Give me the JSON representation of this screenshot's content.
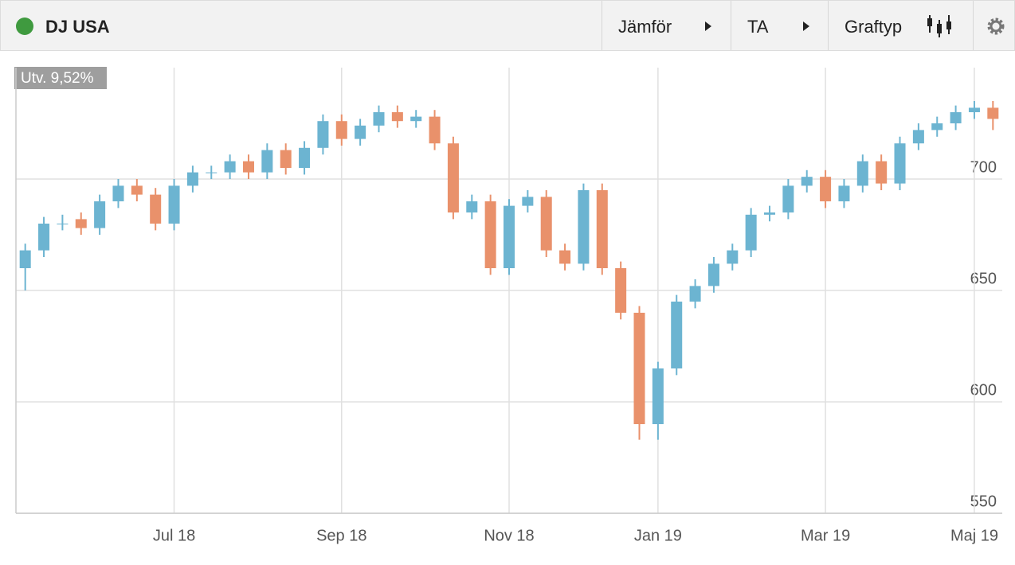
{
  "header": {
    "title": "DJ USA",
    "buttons": [
      "Jämför",
      "TA",
      "Graftyp"
    ]
  },
  "badge": "Utv. 9,52%",
  "chart_data": {
    "type": "candlestick",
    "categories": [
      null,
      null,
      null,
      null,
      null,
      null,
      null,
      null,
      "Jul 18",
      null,
      null,
      null,
      null,
      null,
      null,
      null,
      null,
      "Sep 18",
      null,
      null,
      null,
      null,
      null,
      null,
      null,
      null,
      "Nov 18",
      null,
      null,
      null,
      null,
      null,
      null,
      null,
      "Jan 19",
      null,
      null,
      null,
      null,
      null,
      null,
      null,
      null,
      "Mar 19",
      null,
      null,
      null,
      null,
      null,
      null,
      null,
      "Maj 19",
      null
    ],
    "open": [
      660,
      668,
      680,
      682,
      678,
      690,
      697,
      693,
      680,
      697,
      703,
      703,
      708,
      703,
      713,
      705,
      714,
      726,
      718,
      724,
      730,
      726,
      728,
      716,
      685,
      690,
      660,
      688,
      692,
      668,
      662,
      695,
      660,
      640,
      590,
      615,
      645,
      652,
      662,
      668,
      684,
      685,
      697,
      701,
      690,
      697,
      708,
      698,
      716,
      722,
      725,
      730,
      732
    ],
    "high": [
      671,
      683,
      684,
      685,
      693,
      700,
      700,
      696,
      700,
      706,
      706,
      711,
      711,
      716,
      716,
      717,
      729,
      729,
      727,
      733,
      733,
      731,
      731,
      719,
      693,
      693,
      691,
      695,
      695,
      671,
      698,
      698,
      663,
      643,
      618,
      648,
      655,
      665,
      671,
      687,
      688,
      700,
      704,
      704,
      700,
      711,
      711,
      719,
      725,
      728,
      733,
      735,
      735
    ],
    "low": [
      650,
      665,
      677,
      675,
      675,
      687,
      690,
      677,
      677,
      694,
      700,
      700,
      700,
      700,
      702,
      702,
      711,
      715,
      715,
      721,
      723,
      723,
      713,
      682,
      682,
      657,
      657,
      685,
      665,
      659,
      659,
      657,
      637,
      583,
      583,
      612,
      642,
      649,
      659,
      665,
      681,
      682,
      694,
      687,
      687,
      694,
      695,
      695,
      713,
      719,
      722,
      727,
      722
    ],
    "close": [
      668,
      680,
      680,
      678,
      690,
      697,
      693,
      680,
      697,
      703,
      703,
      708,
      703,
      713,
      705,
      714,
      726,
      718,
      724,
      730,
      726,
      728,
      716,
      685,
      690,
      660,
      688,
      692,
      668,
      662,
      695,
      660,
      640,
      590,
      615,
      645,
      652,
      662,
      668,
      684,
      685,
      697,
      701,
      690,
      697,
      708,
      698,
      716,
      722,
      725,
      730,
      732,
      727
    ],
    "up_color": "#6cb4d1",
    "down_color": "#e9916b",
    "ylim": [
      550,
      750
    ],
    "yticks": [
      550,
      600,
      650,
      700
    ],
    "grid": true
  }
}
